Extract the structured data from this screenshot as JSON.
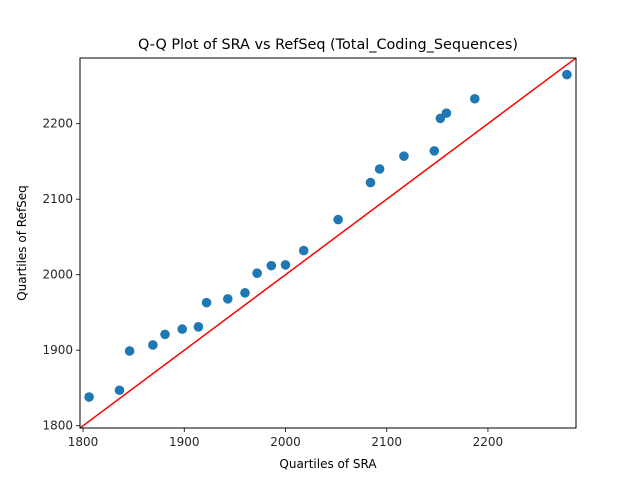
{
  "chart_data": {
    "type": "scatter",
    "title": "Q-Q Plot of SRA vs RefSeq (Total_Coding_Sequences)",
    "xlabel": "Quartiles of SRA",
    "ylabel": "Quartiles of RefSeq",
    "xlim": [
      1797,
      2287
    ],
    "ylim": [
      1797,
      2287
    ],
    "xticks": [
      1800,
      1900,
      2000,
      2100,
      2200
    ],
    "yticks": [
      1800,
      1900,
      2000,
      2100,
      2200
    ],
    "grid": false,
    "marker_color": "#1f77b4",
    "reference_line": {
      "from": [
        1797,
        1797
      ],
      "to": [
        2287,
        2287
      ],
      "color": "#ff0000"
    },
    "points": [
      {
        "x": 1806,
        "y": 1838
      },
      {
        "x": 1836,
        "y": 1847
      },
      {
        "x": 1846,
        "y": 1899
      },
      {
        "x": 1869,
        "y": 1907
      },
      {
        "x": 1881,
        "y": 1921
      },
      {
        "x": 1898,
        "y": 1928
      },
      {
        "x": 1914,
        "y": 1931
      },
      {
        "x": 1922,
        "y": 1963
      },
      {
        "x": 1943,
        "y": 1968
      },
      {
        "x": 1960,
        "y": 1976
      },
      {
        "x": 1972,
        "y": 2002
      },
      {
        "x": 1986,
        "y": 2012
      },
      {
        "x": 2000,
        "y": 2013
      },
      {
        "x": 2018,
        "y": 2032
      },
      {
        "x": 2052,
        "y": 2073
      },
      {
        "x": 2084,
        "y": 2122
      },
      {
        "x": 2093,
        "y": 2140
      },
      {
        "x": 2117,
        "y": 2157
      },
      {
        "x": 2147,
        "y": 2164
      },
      {
        "x": 2153,
        "y": 2207
      },
      {
        "x": 2159,
        "y": 2214
      },
      {
        "x": 2187,
        "y": 2233
      },
      {
        "x": 2278,
        "y": 2265
      }
    ]
  }
}
